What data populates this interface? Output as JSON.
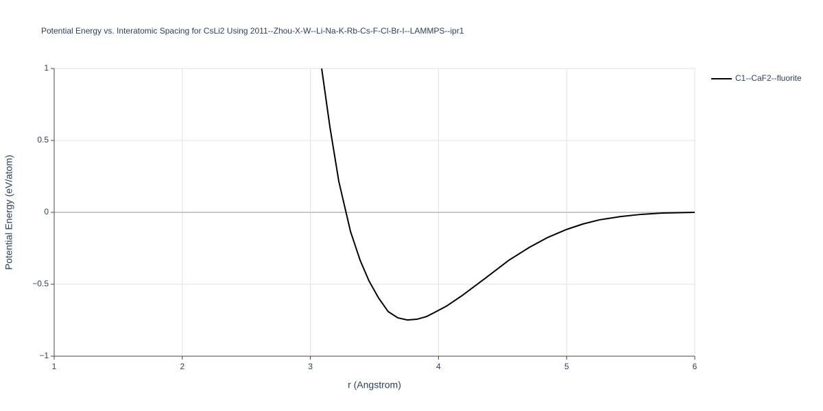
{
  "chart_data": {
    "type": "line",
    "title": "Potential Energy vs. Interatomic Spacing for CsLi2 Using 2011--Zhou-X-W--Li-Na-K-Rb-Cs-F-Cl-Br-I--LAMMPS--ipr1",
    "xlabel": "r (Angstrom)",
    "ylabel": "Potential Energy (eV/atom)",
    "x": [
      3.088,
      3.152,
      3.222,
      3.313,
      3.388,
      3.457,
      3.532,
      3.607,
      3.682,
      3.757,
      3.832,
      3.907,
      3.982,
      4.062,
      4.18,
      4.367,
      4.549,
      4.71,
      4.849,
      4.999,
      5.127,
      5.256,
      5.422,
      5.582,
      5.748,
      6.0
    ],
    "series": [
      {
        "name": "C1--CaF2--fluorite",
        "color": "#000000",
        "values": [
          1.0,
          0.595,
          0.214,
          -0.133,
          -0.333,
          -0.476,
          -0.595,
          -0.69,
          -0.733,
          -0.748,
          -0.743,
          -0.724,
          -0.69,
          -0.652,
          -0.581,
          -0.457,
          -0.333,
          -0.243,
          -0.176,
          -0.119,
          -0.081,
          -0.052,
          -0.029,
          -0.014,
          -0.005,
          0.0
        ]
      }
    ],
    "xlim": [
      1,
      6
    ],
    "ylim": [
      -1,
      1
    ],
    "xticks": [
      1,
      2,
      3,
      4,
      5,
      6
    ],
    "yticks": [
      {
        "value": -1,
        "label": "−1"
      },
      {
        "value": -0.5,
        "label": "−0.5"
      },
      0,
      0.5,
      1
    ],
    "grid": true,
    "legend": "right"
  }
}
